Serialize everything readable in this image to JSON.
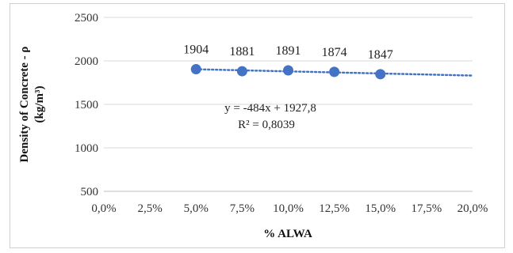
{
  "chart_data": {
    "type": "scatter",
    "xlabel": "% ALWA",
    "ylabel_line1": "Density of Concrete - ρ",
    "ylabel_line2": "(kg/m³)",
    "xlim": [
      0,
      20
    ],
    "ylim": [
      500,
      2500
    ],
    "x_ticks": [
      0,
      2.5,
      5,
      7.5,
      10,
      12.5,
      15,
      17.5,
      20
    ],
    "x_tick_labels": [
      "0,0%",
      "2,5%",
      "5,0%",
      "7,5%",
      "10,0%",
      "12,5%",
      "15,0%",
      "17,5%",
      "20,0%"
    ],
    "y_ticks": [
      500,
      1000,
      1500,
      2000,
      2500
    ],
    "y_tick_labels": [
      "500",
      "1000",
      "1500",
      "2000",
      "2500"
    ],
    "grid": "horizontal",
    "series": [
      {
        "x": [
          5,
          7.5,
          10,
          12.5,
          15
        ],
        "y": [
          1904,
          1881,
          1891,
          1874,
          1847
        ],
        "data_labels": [
          "1904",
          "1881",
          "1891",
          "1874",
          "1847"
        ],
        "color": "#4472c4"
      }
    ],
    "trendline": {
      "type": "linear",
      "slope": -484,
      "intercept": 1927.8,
      "x_range": [
        5,
        20
      ],
      "style": "dotted",
      "color": "#4472c4",
      "equation": "y = -484x + 1927,8",
      "r_squared": "R² = 0,8039"
    }
  }
}
